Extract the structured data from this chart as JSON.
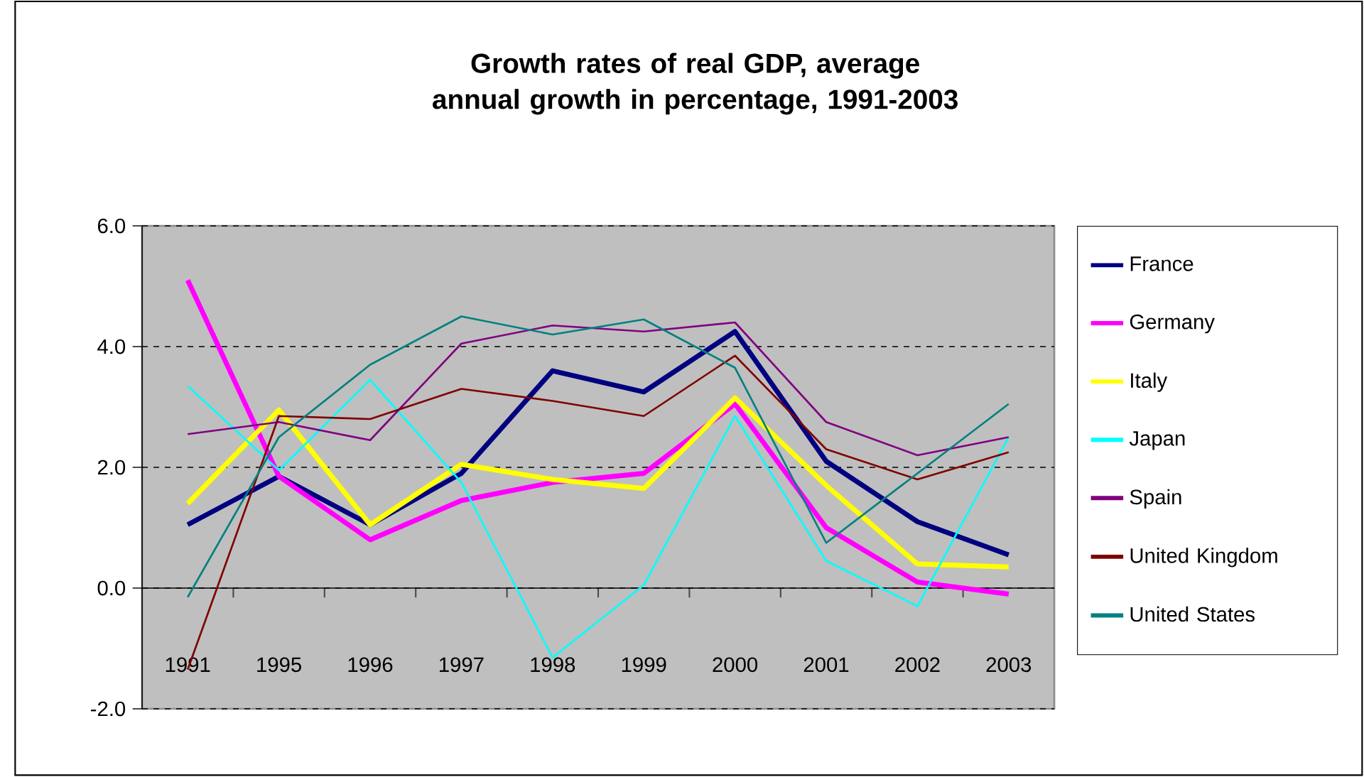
{
  "chart_data": {
    "type": "line",
    "title": "Growth rates of real GDP, average annual growth in percentage, 1991-2003",
    "categories": [
      "1991",
      "1995",
      "1996",
      "1997",
      "1998",
      "1999",
      "2000",
      "2001",
      "2002",
      "2003"
    ],
    "series": [
      {
        "name": "France",
        "color": "#000080",
        "values": [
          1.05,
          1.85,
          1.05,
          1.9,
          3.6,
          3.25,
          4.25,
          2.1,
          1.1,
          0.55
        ]
      },
      {
        "name": "Germany",
        "color": "#ff00ff",
        "values": [
          5.1,
          1.85,
          0.8,
          1.45,
          1.75,
          1.9,
          3.05,
          1.0,
          0.1,
          -0.1
        ]
      },
      {
        "name": "Italy",
        "color": "#ffff00",
        "values": [
          1.4,
          2.95,
          1.05,
          2.05,
          1.8,
          1.65,
          3.15,
          1.7,
          0.4,
          0.35
        ]
      },
      {
        "name": "Japan",
        "color": "#00ffff",
        "values": [
          3.35,
          1.95,
          3.45,
          1.75,
          -1.15,
          0.05,
          2.85,
          0.45,
          -0.3,
          2.5
        ]
      },
      {
        "name": "Spain",
        "color": "#800080",
        "values": [
          2.55,
          2.75,
          2.45,
          4.05,
          4.35,
          4.25,
          4.4,
          2.75,
          2.2,
          2.5
        ]
      },
      {
        "name": "United Kingdom",
        "color": "#800000",
        "values": [
          -1.35,
          2.85,
          2.8,
          3.3,
          3.1,
          2.85,
          3.85,
          2.3,
          1.8,
          2.25
        ]
      },
      {
        "name": "United States",
        "color": "#008080",
        "values": [
          -0.15,
          2.5,
          3.7,
          4.5,
          4.2,
          4.45,
          3.65,
          0.75,
          1.9,
          3.05
        ]
      }
    ],
    "ylim": [
      -2,
      6
    ],
    "yticks": [
      {
        "value": -2,
        "label": "-2.0"
      },
      {
        "value": 0,
        "label": "0.0"
      },
      {
        "value": 2,
        "label": "2.0"
      },
      {
        "value": 4,
        "label": "4.0"
      },
      {
        "value": 6,
        "label": "6.0"
      }
    ],
    "grid": "y",
    "legend": "right",
    "line_style": "solid",
    "marker": "none"
  }
}
